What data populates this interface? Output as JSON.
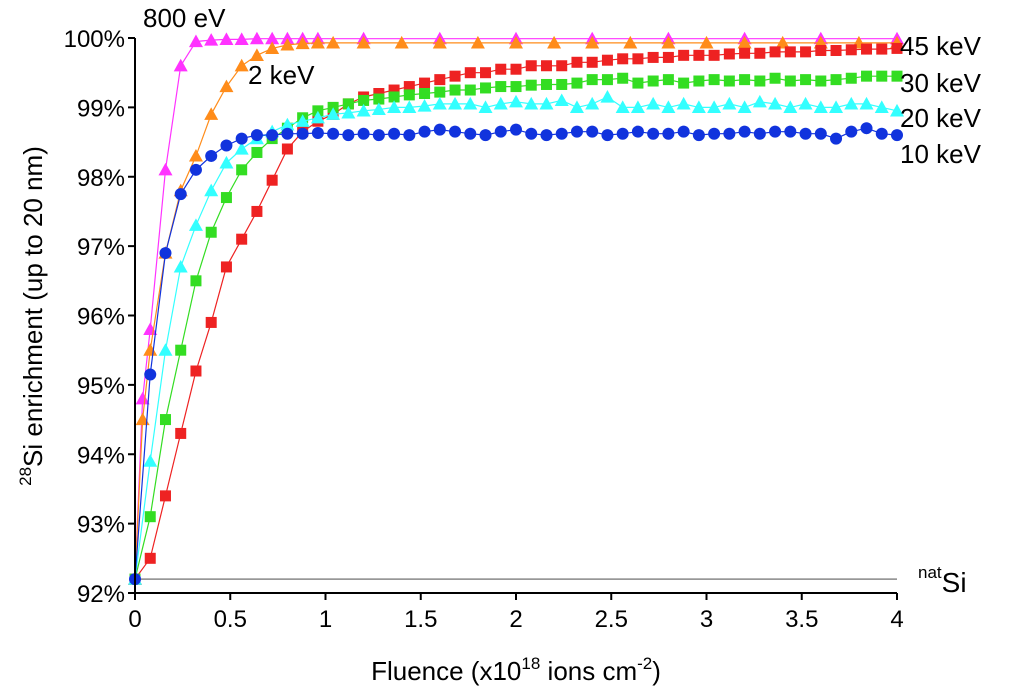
{
  "chart_data": {
    "type": "line",
    "xlabel": {
      "prefix": "Fluence (x10",
      "sup": "18",
      "middle": " ions cm",
      "sup2": "-2",
      "suffix": ")"
    },
    "ylabel": {
      "sup": "28",
      "text": "Si enrichment (up to 20 nm)"
    },
    "xlim": [
      0,
      4
    ],
    "ylim": [
      92,
      100
    ],
    "x_ticks": [
      "0",
      "0.5",
      "1",
      "1.5",
      "2",
      "2.5",
      "3",
      "3.5",
      "4"
    ],
    "y_ticks": [
      "92%",
      "93%",
      "94%",
      "95%",
      "96%",
      "97%",
      "98%",
      "99%",
      "100%"
    ],
    "reference_line": {
      "y": 92.2,
      "label_sup": "nat",
      "label_text": "Si"
    },
    "series": [
      {
        "name": "800 eV",
        "color": "#ff33ff",
        "marker": "triangle",
        "x": [
          0,
          0.04,
          0.08,
          0.16,
          0.24,
          0.32,
          0.4,
          0.48,
          0.56,
          0.64,
          0.72,
          0.8,
          0.88,
          0.96,
          1.2,
          1.6,
          2.0,
          2.4,
          2.8,
          3.2,
          3.6,
          4.0
        ],
        "y": [
          92.2,
          94.8,
          95.8,
          98.1,
          99.6,
          99.95,
          99.97,
          99.98,
          99.98,
          99.99,
          99.99,
          99.99,
          99.99,
          99.99,
          99.99,
          99.99,
          99.99,
          99.99,
          99.99,
          99.99,
          99.99,
          99.99
        ]
      },
      {
        "name": "2 keV",
        "color": "#ff8c1a",
        "marker": "triangle",
        "x": [
          0,
          0.04,
          0.08,
          0.16,
          0.24,
          0.32,
          0.4,
          0.48,
          0.56,
          0.64,
          0.72,
          0.8,
          0.88,
          0.96,
          1.04,
          1.2,
          1.4,
          1.6,
          1.8,
          2.0,
          2.2,
          2.4,
          2.6,
          2.8,
          3.0,
          3.2,
          3.4,
          3.6,
          3.8,
          4.0
        ],
        "y": [
          92.2,
          94.5,
          95.5,
          96.9,
          97.8,
          98.3,
          98.9,
          99.3,
          99.6,
          99.75,
          99.85,
          99.9,
          99.92,
          99.93,
          99.93,
          99.93,
          99.93,
          99.93,
          99.93,
          99.93,
          99.93,
          99.93,
          99.93,
          99.93,
          99.93,
          99.93,
          99.93,
          99.93,
          99.93,
          99.93
        ]
      },
      {
        "name": "45 keV",
        "color": "#ee2222",
        "marker": "square",
        "x": [
          0,
          0.08,
          0.16,
          0.24,
          0.32,
          0.4,
          0.48,
          0.56,
          0.64,
          0.72,
          0.8,
          0.88,
          0.96,
          1.04,
          1.12,
          1.2,
          1.28,
          1.36,
          1.44,
          1.52,
          1.6,
          1.68,
          1.76,
          1.84,
          1.92,
          2.0,
          2.08,
          2.16,
          2.24,
          2.32,
          2.4,
          2.48,
          2.56,
          2.64,
          2.72,
          2.8,
          2.88,
          2.96,
          3.04,
          3.12,
          3.2,
          3.28,
          3.36,
          3.44,
          3.52,
          3.6,
          3.68,
          3.76,
          3.84,
          3.92,
          4.0
        ],
        "y": [
          92.2,
          92.5,
          93.4,
          94.3,
          95.2,
          95.9,
          96.7,
          97.1,
          97.5,
          97.95,
          98.4,
          98.65,
          98.8,
          98.9,
          99.05,
          99.15,
          99.2,
          99.25,
          99.3,
          99.35,
          99.4,
          99.45,
          99.5,
          99.5,
          99.55,
          99.55,
          99.6,
          99.6,
          99.6,
          99.65,
          99.65,
          99.68,
          99.7,
          99.7,
          99.72,
          99.72,
          99.75,
          99.75,
          99.75,
          99.77,
          99.78,
          99.78,
          99.8,
          99.8,
          99.8,
          99.82,
          99.82,
          99.83,
          99.84,
          99.84,
          99.85
        ]
      },
      {
        "name": "30 keV",
        "color": "#33dd22",
        "marker": "square",
        "x": [
          0,
          0.08,
          0.16,
          0.24,
          0.32,
          0.4,
          0.48,
          0.56,
          0.64,
          0.72,
          0.8,
          0.88,
          0.96,
          1.04,
          1.12,
          1.2,
          1.28,
          1.36,
          1.44,
          1.52,
          1.6,
          1.68,
          1.76,
          1.84,
          1.92,
          2.0,
          2.08,
          2.16,
          2.24,
          2.32,
          2.4,
          2.48,
          2.56,
          2.64,
          2.72,
          2.8,
          2.88,
          2.96,
          3.04,
          3.12,
          3.2,
          3.28,
          3.36,
          3.44,
          3.52,
          3.6,
          3.68,
          3.76,
          3.84,
          3.92,
          4.0
        ],
        "y": [
          92.2,
          93.1,
          94.5,
          95.5,
          96.5,
          97.2,
          97.7,
          98.1,
          98.35,
          98.55,
          98.7,
          98.85,
          98.95,
          99.0,
          99.05,
          99.1,
          99.12,
          99.15,
          99.18,
          99.2,
          99.22,
          99.25,
          99.25,
          99.28,
          99.3,
          99.3,
          99.32,
          99.33,
          99.33,
          99.35,
          99.4,
          99.4,
          99.42,
          99.35,
          99.38,
          99.4,
          99.35,
          99.38,
          99.4,
          99.38,
          99.4,
          99.38,
          99.42,
          99.38,
          99.4,
          99.38,
          99.4,
          99.42,
          99.45,
          99.45,
          99.45
        ]
      },
      {
        "name": "20 keV",
        "color": "#33ffff",
        "marker": "triangle",
        "x": [
          0,
          0.08,
          0.16,
          0.24,
          0.32,
          0.4,
          0.48,
          0.56,
          0.64,
          0.72,
          0.8,
          0.88,
          0.96,
          1.04,
          1.12,
          1.2,
          1.28,
          1.36,
          1.44,
          1.52,
          1.6,
          1.68,
          1.76,
          1.84,
          1.92,
          2.0,
          2.08,
          2.16,
          2.24,
          2.32,
          2.4,
          2.48,
          2.56,
          2.64,
          2.72,
          2.8,
          2.88,
          2.96,
          3.04,
          3.12,
          3.2,
          3.28,
          3.36,
          3.44,
          3.52,
          3.6,
          3.68,
          3.76,
          3.84,
          3.92,
          4.0
        ],
        "y": [
          92.2,
          93.9,
          95.5,
          96.7,
          97.3,
          97.8,
          98.2,
          98.4,
          98.55,
          98.65,
          98.75,
          98.8,
          98.85,
          98.9,
          98.92,
          98.95,
          98.97,
          99.0,
          99.0,
          99.02,
          99.05,
          99.05,
          99.05,
          99.0,
          99.05,
          99.08,
          99.05,
          99.05,
          99.1,
          99.0,
          99.05,
          99.15,
          99.0,
          99.0,
          99.05,
          99.0,
          99.05,
          99.0,
          99.0,
          99.05,
          99.0,
          99.08,
          99.05,
          99.0,
          99.05,
          99.0,
          99.0,
          99.05,
          99.05,
          99.0,
          98.95
        ]
      },
      {
        "name": "10 keV",
        "color": "#1133dd",
        "marker": "circle",
        "x": [
          0,
          0.08,
          0.16,
          0.24,
          0.32,
          0.4,
          0.48,
          0.56,
          0.64,
          0.72,
          0.8,
          0.88,
          0.96,
          1.04,
          1.12,
          1.2,
          1.28,
          1.36,
          1.44,
          1.52,
          1.6,
          1.68,
          1.76,
          1.84,
          1.92,
          2.0,
          2.08,
          2.16,
          2.24,
          2.32,
          2.4,
          2.48,
          2.56,
          2.64,
          2.72,
          2.8,
          2.88,
          2.96,
          3.04,
          3.12,
          3.2,
          3.28,
          3.36,
          3.44,
          3.52,
          3.6,
          3.68,
          3.76,
          3.84,
          3.92,
          4.0
        ],
        "y": [
          92.2,
          95.15,
          96.9,
          97.75,
          98.1,
          98.3,
          98.45,
          98.55,
          98.6,
          98.6,
          98.62,
          98.62,
          98.63,
          98.62,
          98.6,
          98.62,
          98.6,
          98.62,
          98.6,
          98.65,
          98.68,
          98.65,
          98.62,
          98.6,
          98.65,
          98.68,
          98.62,
          98.6,
          98.62,
          98.65,
          98.65,
          98.6,
          98.62,
          98.65,
          98.62,
          98.62,
          98.65,
          98.6,
          98.62,
          98.62,
          98.65,
          98.62,
          98.65,
          98.65,
          98.62,
          98.62,
          98.55,
          98.65,
          98.7,
          98.62,
          98.6
        ]
      }
    ]
  }
}
